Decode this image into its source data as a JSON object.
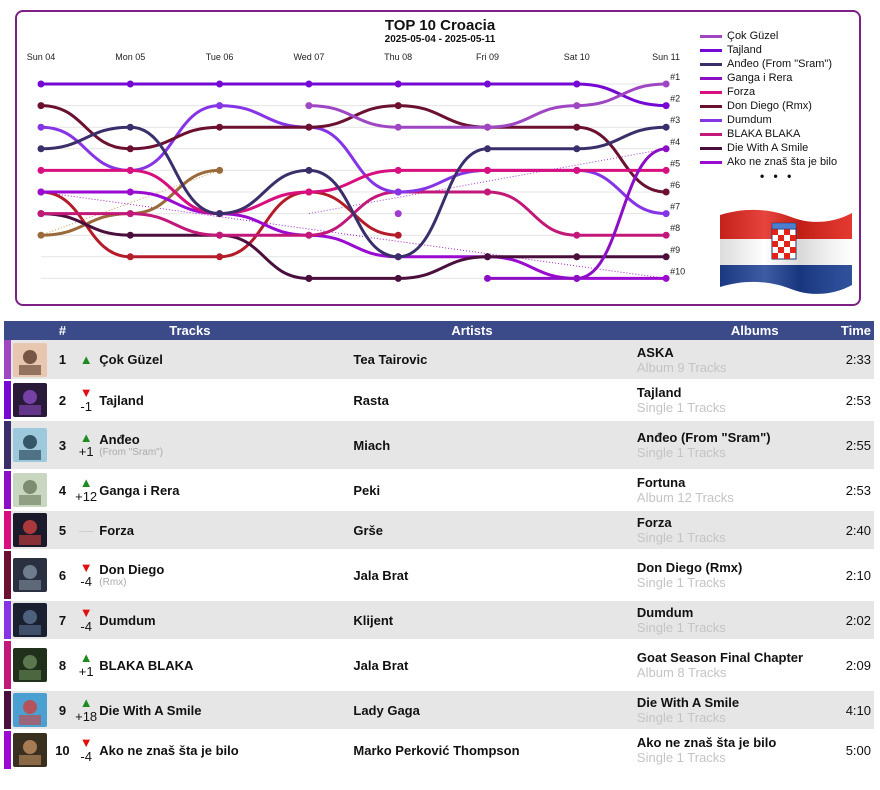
{
  "chart_data": {
    "type": "bump",
    "title": "TOP 10 Croacia",
    "subtitle": "2025-05-04 - 2025-05-11",
    "categories": [
      "Sun 04",
      "Mon 05",
      "Tue 06",
      "Wed 07",
      "Thu 08",
      "Fri 09",
      "Sat 10",
      "Sun 11"
    ],
    "rank_labels": [
      "#1",
      "#2",
      "#3",
      "#4",
      "#5",
      "#6",
      "#7",
      "#8",
      "#9",
      "#10"
    ],
    "ylim": [
      1,
      10
    ],
    "legend_more": "• • •",
    "series": [
      {
        "name": "Çok Güzel",
        "color": "#9f46c2",
        "ranks": [
          null,
          null,
          null,
          2,
          3,
          3,
          2,
          1
        ]
      },
      {
        "name": "Tajland",
        "color": "#7608d4",
        "ranks": [
          1,
          1,
          1,
          1,
          1,
          1,
          1,
          2
        ]
      },
      {
        "name": "Anđeo (From \"Sram\")",
        "color": "#3a2f6b",
        "ranks": [
          4,
          3,
          7,
          5,
          9,
          4,
          4,
          3
        ]
      },
      {
        "name": "Ganga i Rera",
        "color": "#8d0fc5",
        "ranks": [
          null,
          null,
          null,
          null,
          null,
          10,
          10,
          4
        ]
      },
      {
        "name": "Forza",
        "color": "#d80f7f",
        "ranks": [
          5,
          5,
          7,
          6,
          5,
          5,
          5,
          5
        ]
      },
      {
        "name": "Don Diego (Rmx)",
        "color": "#6b1030",
        "ranks": [
          2,
          4,
          3,
          3,
          2,
          3,
          3,
          6
        ]
      },
      {
        "name": "Dumdum",
        "color": "#8534e6",
        "ranks": [
          3,
          5,
          2,
          3,
          6,
          5,
          5,
          7
        ]
      },
      {
        "name": "BLAKA BLAKA",
        "color": "#c2187a",
        "ranks": [
          7,
          7,
          8,
          8,
          6,
          6,
          8,
          8
        ]
      },
      {
        "name": "Die With A Smile",
        "color": "#4a0f3c",
        "ranks": [
          7,
          8,
          8,
          10,
          10,
          9,
          9,
          9
        ]
      },
      {
        "name": "Ako ne znaš šta je bilo",
        "color": "#9a0ad0",
        "ranks": [
          6,
          6,
          7,
          8,
          9,
          9,
          10,
          10
        ]
      }
    ],
    "extra_series": [
      {
        "color": "#b51c2a",
        "ranks": [
          6,
          9,
          9,
          6,
          8,
          null,
          null,
          null
        ]
      },
      {
        "color": "#9a6a3a",
        "ranks": [
          8,
          7,
          5,
          null,
          null,
          null,
          null,
          null
        ]
      },
      {
        "color": "#2a2440",
        "ranks": [
          null,
          null,
          null,
          10,
          null,
          null,
          null,
          null
        ]
      },
      {
        "color": "#a13ad0",
        "ranks": [
          null,
          null,
          null,
          null,
          7,
          null,
          null,
          null
        ]
      }
    ]
  },
  "table": {
    "headers": {
      "rank": "#",
      "tracks": "Tracks",
      "artists": "Artists",
      "albums": "Albums",
      "time": "Time"
    },
    "rows": [
      {
        "color": "#9f46c2",
        "rank": "1",
        "dir": "up",
        "delta": "",
        "track": "Çok Güzel",
        "track_sub": "",
        "artist": "Tea Tairovic",
        "album": "ASKA",
        "album_sub": "Album 9 Tracks",
        "time": "2:33",
        "cover": [
          "#e8c7b0",
          "#5a3a2a"
        ]
      },
      {
        "color": "#7608d4",
        "rank": "2",
        "dir": "down",
        "delta": "-1",
        "track": "Tajland",
        "track_sub": "",
        "artist": "Rasta",
        "album": "Tajland",
        "album_sub": "Single 1 Tracks",
        "time": "2:53",
        "cover": [
          "#2a1a3a",
          "#8a4ac0"
        ]
      },
      {
        "color": "#3a2f6b",
        "rank": "3",
        "dir": "up",
        "delta": "+1",
        "track": "Anđeo",
        "track_sub": "(From \"Sram\")",
        "artist": "Miach",
        "album": "Anđeo (From \"Sram\")",
        "album_sub": "Single 1 Tracks",
        "time": "2:55",
        "cover": [
          "#9ec8dc",
          "#1a3a4a"
        ]
      },
      {
        "color": "#8d0fc5",
        "rank": "4",
        "dir": "up",
        "delta": "+12",
        "track": "Ganga i Rera",
        "track_sub": "",
        "artist": "Peki",
        "album": "Fortuna",
        "album_sub": "Album 12 Tracks",
        "time": "2:53",
        "cover": [
          "#c9d6c0",
          "#6a7a5a"
        ]
      },
      {
        "color": "#d80f7f",
        "rank": "5",
        "dir": "same",
        "delta": "",
        "track": "Forza",
        "track_sub": "",
        "artist": "Grše",
        "album": "Forza",
        "album_sub": "Single 1 Tracks",
        "time": "2:40",
        "cover": [
          "#1a1a2a",
          "#d04040"
        ]
      },
      {
        "color": "#6b1030",
        "rank": "6",
        "dir": "down",
        "delta": "-4",
        "track": "Don Diego",
        "track_sub": "(Rmx)",
        "artist": "Jala Brat",
        "album": "Don Diego (Rmx)",
        "album_sub": "Single 1 Tracks",
        "time": "2:10",
        "cover": [
          "#2a3040",
          "#8090a0"
        ]
      },
      {
        "color": "#8534e6",
        "rank": "7",
        "dir": "down",
        "delta": "-4",
        "track": "Dumdum",
        "track_sub": "",
        "artist": "Klijent",
        "album": "Dumdum",
        "album_sub": "Single 1 Tracks",
        "time": "2:02",
        "cover": [
          "#1a2030",
          "#5a7090"
        ]
      },
      {
        "color": "#c2187a",
        "rank": "8",
        "dir": "up",
        "delta": "+1",
        "track": "BLAKA BLAKA",
        "track_sub": "",
        "artist": "Jala Brat",
        "album": "Goat Season Final Chapter",
        "album_sub": "Album 8 Tracks",
        "time": "2:09",
        "cover": [
          "#20301a",
          "#6a8a5a"
        ]
      },
      {
        "color": "#4a0f3c",
        "rank": "9",
        "dir": "up",
        "delta": "+18",
        "track": "Die With A Smile",
        "track_sub": "",
        "artist": "Lady Gaga",
        "album": "Die With A Smile",
        "album_sub": "Single 1 Tracks",
        "time": "4:10",
        "cover": [
          "#4aa0d0",
          "#d04040"
        ]
      },
      {
        "color": "#9a0ad0",
        "rank": "10",
        "dir": "down",
        "delta": "-4",
        "track": "Ako ne znaš šta je bilo",
        "track_sub": "",
        "artist": "Marko Perković Thompson",
        "album": "Ako ne znaš šta je bilo",
        "album_sub": "Single 1 Tracks",
        "time": "5:00",
        "cover": [
          "#3a3020",
          "#c09060"
        ]
      }
    ]
  }
}
